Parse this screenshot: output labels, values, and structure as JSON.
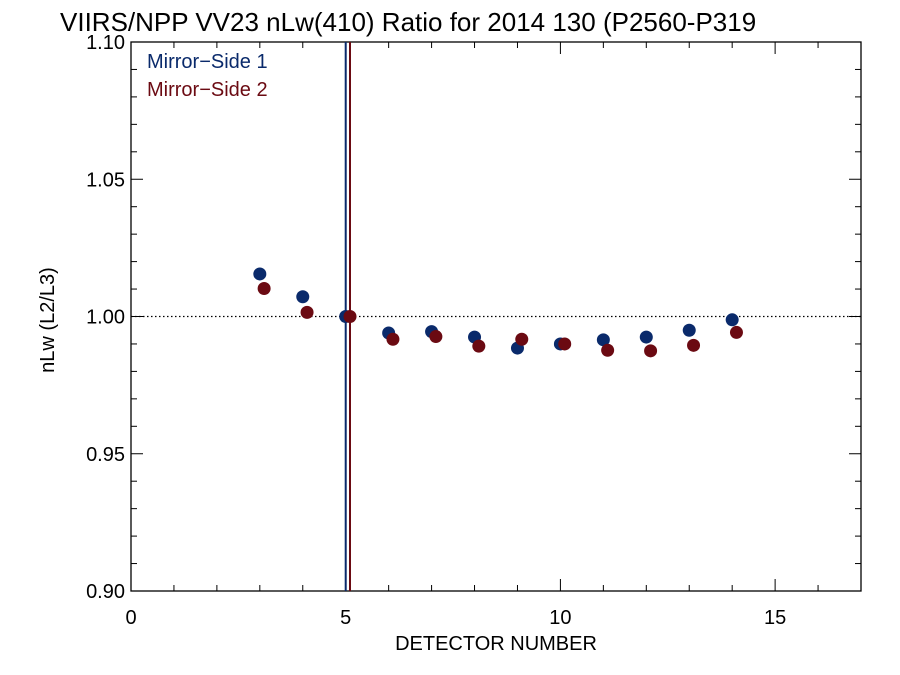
{
  "chart_data": {
    "type": "scatter",
    "title": "VIIRS/NPP VV23 nLw(410) Ratio for 2014 130 (P2560-P319",
    "xlabel": "DETECTOR NUMBER",
    "ylabel": "nLw (L2/L3)",
    "xlim": [
      0,
      17
    ],
    "ylim": [
      0.9,
      1.1
    ],
    "x_ticks": [
      0,
      5,
      10,
      15
    ],
    "x_tick_labels": [
      "0",
      "5",
      "10",
      "15"
    ],
    "y_ticks": [
      0.9,
      0.95,
      1.0,
      1.05,
      1.1
    ],
    "y_tick_labels": [
      "0.90",
      "0.95",
      "1.00",
      "1.05",
      "1.10"
    ],
    "grid": false,
    "reference_line": {
      "y": 1.0,
      "style": "dotted"
    },
    "vertical_lines": [
      {
        "x": 5.0,
        "color": "#0a2a6b"
      },
      {
        "x": 5.1,
        "color": "#6b0a12"
      }
    ],
    "legend_position": "top-left",
    "series": [
      {
        "name": "Mirror−Side 1",
        "color": "#0a2a6b",
        "x": [
          3,
          4,
          5,
          6,
          7,
          8,
          9,
          10,
          11,
          12,
          13,
          14
        ],
        "y": [
          1.0155,
          1.0072,
          1.0,
          0.994,
          0.9945,
          0.9925,
          0.9885,
          0.99,
          0.9915,
          0.9925,
          0.995,
          0.9988
        ]
      },
      {
        "name": "Mirror−Side 2",
        "color": "#6b0a12",
        "x": [
          3.1,
          4.1,
          5.1,
          6.1,
          7.1,
          8.1,
          9.1,
          10.1,
          11.1,
          12.1,
          13.1,
          14.1
        ],
        "y": [
          1.0102,
          1.0015,
          1.0,
          0.9917,
          0.9927,
          0.9892,
          0.9917,
          0.99,
          0.9877,
          0.9875,
          0.9895,
          0.9942
        ]
      }
    ]
  }
}
